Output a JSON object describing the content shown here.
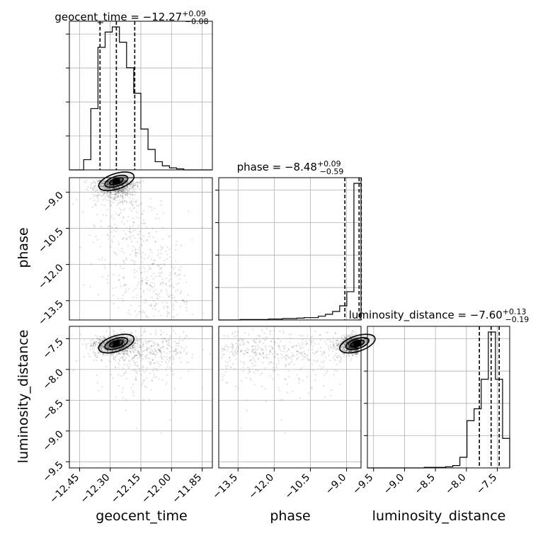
{
  "chart_data": {
    "type": "corner",
    "grid": true,
    "parameters": [
      {
        "name": "geocent_time",
        "xlabel": "geocent_time",
        "ylabel": "",
        "range": [
          -12.5,
          -11.8
        ],
        "ticks": [
          -12.45,
          -12.3,
          -12.15,
          -12.0,
          -11.85
        ],
        "tick_labels": [
          "−12.45",
          "−12.30",
          "−12.15",
          "−12.00",
          "−11.85"
        ]
      },
      {
        "name": "phase",
        "xlabel": "phase",
        "ylabel": "phase",
        "range": [
          -14.3,
          -8.4
        ],
        "ticks": [
          -13.5,
          -12.0,
          -10.5,
          -9.0
        ],
        "tick_labels": [
          "−13.5",
          "−12.0",
          "−10.5",
          "−9.0"
        ]
      },
      {
        "name": "luminosity_distance",
        "xlabel": "luminosity_distance",
        "ylabel": "luminosity_distance",
        "range": [
          -9.6,
          -7.3
        ],
        "ticks": [
          -9.5,
          -9.0,
          -8.5,
          -8.0,
          -7.5
        ],
        "tick_labels": [
          "−9.5",
          "−9.0",
          "−8.5",
          "−8.0",
          "−7.5"
        ]
      }
    ],
    "titles": [
      {
        "prefix": "geocent_time = −12.27",
        "sup": "+0.09",
        "sub": "−0.08"
      },
      {
        "prefix": "phase = −8.48",
        "sup": "+0.09",
        "sub": "−0.59"
      },
      {
        "prefix": "luminosity_distance = −7.60",
        "sup": "+0.13",
        "sub": "−0.19"
      }
    ],
    "quantiles": [
      [
        -12.35,
        -12.27,
        -12.18
      ],
      [
        -9.07,
        -8.48,
        -8.39
      ],
      [
        -7.79,
        -7.6,
        -7.47
      ]
    ],
    "histograms": [
      {
        "bin_edges": [
          -12.5,
          -12.465,
          -12.43,
          -12.395,
          -12.36,
          -12.325,
          -12.29,
          -12.255,
          -12.22,
          -12.185,
          -12.15,
          -12.115,
          -12.08,
          -12.045,
          -12.01,
          -11.975,
          -11.94,
          -11.905,
          -11.87,
          -11.835,
          -11.8
        ],
        "counts": [
          0,
          0,
          10,
          60,
          120,
          135,
          140,
          125,
          100,
          75,
          40,
          20,
          8,
          4,
          2,
          1,
          0,
          0,
          0,
          0
        ]
      },
      {
        "bin_edges": [
          -14.3,
          -14.005,
          -13.71,
          -13.415,
          -13.12,
          -12.825,
          -12.53,
          -12.235,
          -11.94,
          -11.645,
          -11.35,
          -11.055,
          -10.76,
          -10.465,
          -10.17,
          -9.875,
          -9.58,
          -9.285,
          -8.99,
          -8.695,
          -8.4
        ],
        "counts": [
          0,
          0,
          0,
          1,
          1,
          1,
          1,
          2,
          2,
          3,
          3,
          4,
          5,
          5,
          8,
          12,
          18,
          30,
          60,
          290
        ]
      },
      {
        "bin_edges": [
          -9.6,
          -9.485,
          -9.37,
          -9.255,
          -9.14,
          -9.025,
          -8.91,
          -8.795,
          -8.68,
          -8.565,
          -8.45,
          -8.335,
          -8.22,
          -8.105,
          -7.99,
          -7.875,
          -7.76,
          -7.645,
          -7.53,
          -7.415,
          -7.3
        ],
        "counts": [
          0,
          0,
          0,
          0,
          0,
          0,
          0,
          0,
          1,
          1,
          1,
          2,
          4,
          18,
          80,
          100,
          150,
          230,
          150,
          50
        ]
      }
    ],
    "modes": [
      [
        -12.27,
        -8.55,
        -7.58
      ]
    ]
  }
}
